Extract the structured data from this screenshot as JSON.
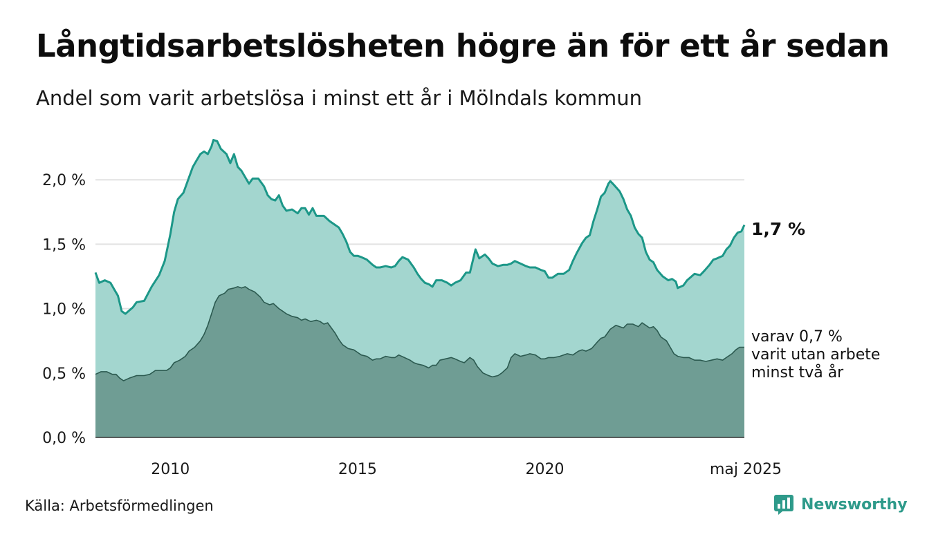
{
  "title": "Långtidsarbetslösheten högre än för ett år sedan",
  "subtitle": "Andel som varit arbetslösa i minst ett år i Mölndals kommun",
  "source": "Källa: Arbetsförmedlingen",
  "brand": {
    "name": "Newsworthy",
    "icon": "bar-chart-speech-bubble-icon"
  },
  "colors": {
    "total_fill": "#a3d6cf",
    "total_line": "#1c9788",
    "long_fill": "#6f9d94",
    "long_line": "#2c5a50",
    "grid": "#e2e2e2",
    "brand": "#2e9a8a"
  },
  "chart_data": {
    "type": "area",
    "title": "Långtidsarbetslösheten högre än för ett år sedan",
    "subtitle": "Andel som varit arbetslösa i minst ett år i Mölndals kommun",
    "x_range": [
      2008.0,
      2025.33
    ],
    "ylim": [
      0,
      2.35
    ],
    "y_ticks": [
      {
        "value": 0.0,
        "label": "0,0 %"
      },
      {
        "value": 0.5,
        "label": "0,5 %"
      },
      {
        "value": 1.0,
        "label": "1,0 %"
      },
      {
        "value": 1.5,
        "label": "1,5 %"
      },
      {
        "value": 2.0,
        "label": "2,0 %"
      }
    ],
    "x_ticks": [
      {
        "value": 2010,
        "label": "2010"
      },
      {
        "value": 2015,
        "label": "2015"
      },
      {
        "value": 2020,
        "label": "2020"
      },
      {
        "value": 2025.33,
        "label": "maj 2025"
      }
    ],
    "grid": true,
    "series": [
      {
        "key": "total",
        "points": [
          [
            2008.0,
            1.28
          ],
          [
            2008.1,
            1.2
          ],
          [
            2008.25,
            1.22
          ],
          [
            2008.4,
            1.2
          ],
          [
            2008.5,
            1.15
          ],
          [
            2008.6,
            1.1
          ],
          [
            2008.7,
            0.98
          ],
          [
            2008.8,
            0.96
          ],
          [
            2009.0,
            1.01
          ],
          [
            2009.1,
            1.05
          ],
          [
            2009.3,
            1.06
          ],
          [
            2009.5,
            1.17
          ],
          [
            2009.7,
            1.26
          ],
          [
            2009.85,
            1.37
          ],
          [
            2010.0,
            1.58
          ],
          [
            2010.1,
            1.75
          ],
          [
            2010.2,
            1.85
          ],
          [
            2010.35,
            1.9
          ],
          [
            2010.5,
            2.02
          ],
          [
            2010.6,
            2.1
          ],
          [
            2010.7,
            2.15
          ],
          [
            2010.8,
            2.2
          ],
          [
            2010.9,
            2.22
          ],
          [
            2011.0,
            2.2
          ],
          [
            2011.1,
            2.26
          ],
          [
            2011.15,
            2.31
          ],
          [
            2011.25,
            2.3
          ],
          [
            2011.35,
            2.24
          ],
          [
            2011.5,
            2.2
          ],
          [
            2011.6,
            2.13
          ],
          [
            2011.7,
            2.2
          ],
          [
            2011.8,
            2.1
          ],
          [
            2011.9,
            2.07
          ],
          [
            2012.0,
            2.02
          ],
          [
            2012.1,
            1.97
          ],
          [
            2012.2,
            2.01
          ],
          [
            2012.35,
            2.01
          ],
          [
            2012.5,
            1.95
          ],
          [
            2012.6,
            1.88
          ],
          [
            2012.7,
            1.85
          ],
          [
            2012.8,
            1.84
          ],
          [
            2012.9,
            1.88
          ],
          [
            2013.0,
            1.8
          ],
          [
            2013.1,
            1.76
          ],
          [
            2013.25,
            1.77
          ],
          [
            2013.4,
            1.74
          ],
          [
            2013.5,
            1.78
          ],
          [
            2013.6,
            1.78
          ],
          [
            2013.7,
            1.73
          ],
          [
            2013.8,
            1.78
          ],
          [
            2013.9,
            1.72
          ],
          [
            2014.1,
            1.72
          ],
          [
            2014.25,
            1.68
          ],
          [
            2014.4,
            1.65
          ],
          [
            2014.5,
            1.63
          ],
          [
            2014.6,
            1.58
          ],
          [
            2014.7,
            1.52
          ],
          [
            2014.8,
            1.44
          ],
          [
            2014.9,
            1.41
          ],
          [
            2015.0,
            1.41
          ],
          [
            2015.1,
            1.4
          ],
          [
            2015.25,
            1.38
          ],
          [
            2015.4,
            1.34
          ],
          [
            2015.5,
            1.32
          ],
          [
            2015.6,
            1.32
          ],
          [
            2015.75,
            1.33
          ],
          [
            2015.9,
            1.32
          ],
          [
            2016.0,
            1.33
          ],
          [
            2016.1,
            1.37
          ],
          [
            2016.2,
            1.4
          ],
          [
            2016.35,
            1.38
          ],
          [
            2016.5,
            1.32
          ],
          [
            2016.6,
            1.27
          ],
          [
            2016.7,
            1.23
          ],
          [
            2016.8,
            1.2
          ],
          [
            2016.9,
            1.19
          ],
          [
            2017.0,
            1.17
          ],
          [
            2017.1,
            1.22
          ],
          [
            2017.25,
            1.22
          ],
          [
            2017.4,
            1.2
          ],
          [
            2017.5,
            1.18
          ],
          [
            2017.6,
            1.2
          ],
          [
            2017.75,
            1.22
          ],
          [
            2017.9,
            1.28
          ],
          [
            2018.0,
            1.28
          ],
          [
            2018.1,
            1.4
          ],
          [
            2018.15,
            1.46
          ],
          [
            2018.25,
            1.39
          ],
          [
            2018.4,
            1.42
          ],
          [
            2018.5,
            1.39
          ],
          [
            2018.6,
            1.35
          ],
          [
            2018.75,
            1.33
          ],
          [
            2018.9,
            1.34
          ],
          [
            2019.0,
            1.34
          ],
          [
            2019.1,
            1.35
          ],
          [
            2019.2,
            1.37
          ],
          [
            2019.35,
            1.35
          ],
          [
            2019.5,
            1.33
          ],
          [
            2019.6,
            1.32
          ],
          [
            2019.75,
            1.32
          ],
          [
            2019.9,
            1.3
          ],
          [
            2020.0,
            1.29
          ],
          [
            2020.1,
            1.24
          ],
          [
            2020.2,
            1.24
          ],
          [
            2020.35,
            1.27
          ],
          [
            2020.5,
            1.27
          ],
          [
            2020.65,
            1.3
          ],
          [
            2020.75,
            1.37
          ],
          [
            2020.85,
            1.43
          ],
          [
            2021.0,
            1.51
          ],
          [
            2021.1,
            1.55
          ],
          [
            2021.2,
            1.57
          ],
          [
            2021.3,
            1.68
          ],
          [
            2021.4,
            1.77
          ],
          [
            2021.5,
            1.87
          ],
          [
            2021.6,
            1.9
          ],
          [
            2021.7,
            1.97
          ],
          [
            2021.75,
            1.99
          ],
          [
            2021.85,
            1.96
          ],
          [
            2022.0,
            1.91
          ],
          [
            2022.1,
            1.85
          ],
          [
            2022.2,
            1.77
          ],
          [
            2022.3,
            1.72
          ],
          [
            2022.4,
            1.63
          ],
          [
            2022.5,
            1.58
          ],
          [
            2022.6,
            1.55
          ],
          [
            2022.7,
            1.44
          ],
          [
            2022.8,
            1.38
          ],
          [
            2022.9,
            1.36
          ],
          [
            2023.0,
            1.3
          ],
          [
            2023.15,
            1.25
          ],
          [
            2023.3,
            1.22
          ],
          [
            2023.4,
            1.23
          ],
          [
            2023.5,
            1.21
          ],
          [
            2023.55,
            1.16
          ],
          [
            2023.7,
            1.18
          ],
          [
            2023.8,
            1.22
          ],
          [
            2024.0,
            1.27
          ],
          [
            2024.15,
            1.26
          ],
          [
            2024.25,
            1.29
          ],
          [
            2024.4,
            1.34
          ],
          [
            2024.5,
            1.38
          ],
          [
            2024.6,
            1.39
          ],
          [
            2024.75,
            1.41
          ],
          [
            2024.85,
            1.46
          ],
          [
            2024.95,
            1.49
          ],
          [
            2025.05,
            1.55
          ],
          [
            2025.15,
            1.59
          ],
          [
            2025.25,
            1.6
          ],
          [
            2025.33,
            1.65
          ]
        ]
      },
      {
        "key": "long",
        "points": [
          [
            2008.0,
            0.49
          ],
          [
            2008.15,
            0.51
          ],
          [
            2008.3,
            0.51
          ],
          [
            2008.45,
            0.49
          ],
          [
            2008.55,
            0.49
          ],
          [
            2008.65,
            0.46
          ],
          [
            2008.75,
            0.44
          ],
          [
            2008.9,
            0.46
          ],
          [
            2009.1,
            0.48
          ],
          [
            2009.3,
            0.48
          ],
          [
            2009.45,
            0.49
          ],
          [
            2009.6,
            0.52
          ],
          [
            2009.75,
            0.52
          ],
          [
            2009.9,
            0.52
          ],
          [
            2010.0,
            0.54
          ],
          [
            2010.1,
            0.58
          ],
          [
            2010.25,
            0.6
          ],
          [
            2010.4,
            0.63
          ],
          [
            2010.5,
            0.67
          ],
          [
            2010.65,
            0.7
          ],
          [
            2010.8,
            0.75
          ],
          [
            2010.9,
            0.8
          ],
          [
            2011.0,
            0.87
          ],
          [
            2011.1,
            0.96
          ],
          [
            2011.2,
            1.05
          ],
          [
            2011.3,
            1.1
          ],
          [
            2011.45,
            1.12
          ],
          [
            2011.55,
            1.15
          ],
          [
            2011.7,
            1.16
          ],
          [
            2011.8,
            1.17
          ],
          [
            2011.9,
            1.16
          ],
          [
            2012.0,
            1.17
          ],
          [
            2012.1,
            1.15
          ],
          [
            2012.25,
            1.13
          ],
          [
            2012.4,
            1.09
          ],
          [
            2012.5,
            1.05
          ],
          [
            2012.65,
            1.03
          ],
          [
            2012.75,
            1.04
          ],
          [
            2012.9,
            1.0
          ],
          [
            2013.0,
            0.98
          ],
          [
            2013.1,
            0.96
          ],
          [
            2013.25,
            0.94
          ],
          [
            2013.4,
            0.93
          ],
          [
            2013.5,
            0.91
          ],
          [
            2013.6,
            0.92
          ],
          [
            2013.75,
            0.9
          ],
          [
            2013.9,
            0.91
          ],
          [
            2014.0,
            0.9
          ],
          [
            2014.1,
            0.88
          ],
          [
            2014.2,
            0.89
          ],
          [
            2014.3,
            0.85
          ],
          [
            2014.4,
            0.81
          ],
          [
            2014.5,
            0.76
          ],
          [
            2014.6,
            0.72
          ],
          [
            2014.75,
            0.69
          ],
          [
            2014.9,
            0.68
          ],
          [
            2015.0,
            0.66
          ],
          [
            2015.1,
            0.64
          ],
          [
            2015.25,
            0.63
          ],
          [
            2015.4,
            0.6
          ],
          [
            2015.5,
            0.61
          ],
          [
            2015.6,
            0.61
          ],
          [
            2015.75,
            0.63
          ],
          [
            2015.9,
            0.62
          ],
          [
            2016.0,
            0.62
          ],
          [
            2016.1,
            0.64
          ],
          [
            2016.25,
            0.62
          ],
          [
            2016.4,
            0.6
          ],
          [
            2016.5,
            0.58
          ],
          [
            2016.6,
            0.57
          ],
          [
            2016.75,
            0.56
          ],
          [
            2016.9,
            0.54
          ],
          [
            2017.0,
            0.56
          ],
          [
            2017.1,
            0.56
          ],
          [
            2017.2,
            0.6
          ],
          [
            2017.35,
            0.61
          ],
          [
            2017.5,
            0.62
          ],
          [
            2017.6,
            0.61
          ],
          [
            2017.75,
            0.59
          ],
          [
            2017.85,
            0.58
          ],
          [
            2018.0,
            0.62
          ],
          [
            2018.1,
            0.6
          ],
          [
            2018.2,
            0.55
          ],
          [
            2018.35,
            0.5
          ],
          [
            2018.5,
            0.48
          ],
          [
            2018.6,
            0.47
          ],
          [
            2018.75,
            0.48
          ],
          [
            2018.85,
            0.5
          ],
          [
            2019.0,
            0.54
          ],
          [
            2019.1,
            0.62
          ],
          [
            2019.2,
            0.65
          ],
          [
            2019.35,
            0.63
          ],
          [
            2019.5,
            0.64
          ],
          [
            2019.6,
            0.65
          ],
          [
            2019.75,
            0.64
          ],
          [
            2019.9,
            0.61
          ],
          [
            2020.0,
            0.61
          ],
          [
            2020.1,
            0.62
          ],
          [
            2020.25,
            0.62
          ],
          [
            2020.4,
            0.63
          ],
          [
            2020.5,
            0.64
          ],
          [
            2020.6,
            0.65
          ],
          [
            2020.75,
            0.64
          ],
          [
            2020.9,
            0.67
          ],
          [
            2021.0,
            0.68
          ],
          [
            2021.1,
            0.67
          ],
          [
            2021.25,
            0.69
          ],
          [
            2021.4,
            0.74
          ],
          [
            2021.5,
            0.77
          ],
          [
            2021.6,
            0.78
          ],
          [
            2021.75,
            0.84
          ],
          [
            2021.9,
            0.87
          ],
          [
            2022.0,
            0.86
          ],
          [
            2022.1,
            0.85
          ],
          [
            2022.2,
            0.88
          ],
          [
            2022.35,
            0.88
          ],
          [
            2022.5,
            0.86
          ],
          [
            2022.6,
            0.89
          ],
          [
            2022.7,
            0.87
          ],
          [
            2022.8,
            0.85
          ],
          [
            2022.9,
            0.86
          ],
          [
            2023.0,
            0.83
          ],
          [
            2023.1,
            0.78
          ],
          [
            2023.25,
            0.75
          ],
          [
            2023.35,
            0.7
          ],
          [
            2023.45,
            0.65
          ],
          [
            2023.55,
            0.63
          ],
          [
            2023.7,
            0.62
          ],
          [
            2023.85,
            0.62
          ],
          [
            2024.0,
            0.6
          ],
          [
            2024.15,
            0.6
          ],
          [
            2024.3,
            0.59
          ],
          [
            2024.45,
            0.6
          ],
          [
            2024.6,
            0.61
          ],
          [
            2024.75,
            0.6
          ],
          [
            2024.85,
            0.62
          ],
          [
            2025.0,
            0.65
          ],
          [
            2025.1,
            0.68
          ],
          [
            2025.2,
            0.7
          ],
          [
            2025.33,
            0.7
          ]
        ]
      }
    ],
    "annotations": {
      "total_last": "1,7 %",
      "long_last": [
        "varav 0,7 %",
        "varit utan arbete",
        "minst två år"
      ]
    }
  }
}
